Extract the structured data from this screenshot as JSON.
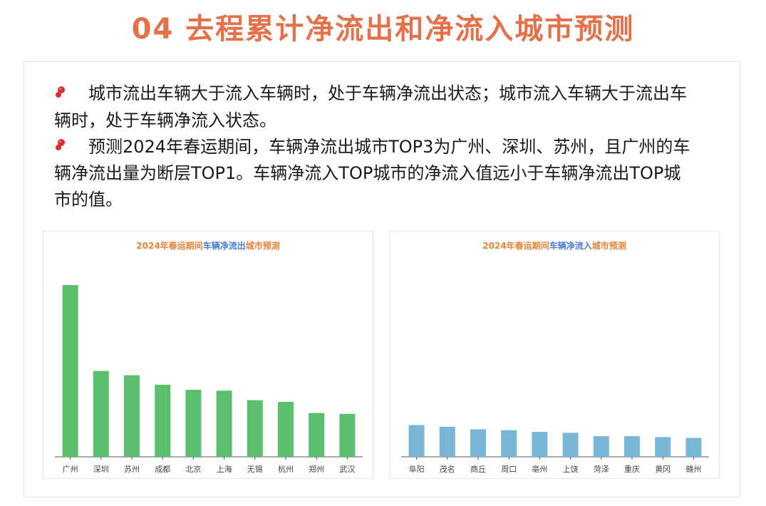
{
  "heading": "04 去程累计净流出和净流入城市预测",
  "bullets": [
    "城市流出车辆大于流入车辆时，处于车辆净流出状态；城市流入车辆大于流出车辆时，处于车辆净流入状态。",
    "预测2024年春运期间，车辆净流出城市TOP3为广州、深圳、苏州，且广州的车辆净流出量为断层TOP1。车辆净流入TOP城市的净流入值远小于车辆净流出TOP城市的值。"
  ],
  "colors": {
    "heading": "#e4714a",
    "outflow_bar": "#5cbf6e",
    "inflow_bar": "#79b6d6",
    "title_orange": "#e8833a",
    "title_blue": "#4a7ed4",
    "bullet_icon": "#d9302c"
  },
  "chart_data": [
    {
      "type": "bar",
      "title_parts": [
        "2024年春运期间",
        "车辆净流出",
        "城市预测"
      ],
      "categories": [
        "广州",
        "深圳",
        "苏州",
        "成都",
        "北京",
        "上海",
        "无锡",
        "杭州",
        "郑州",
        "武汉"
      ],
      "values": [
        100,
        50,
        47.5,
        42,
        39,
        38.5,
        33,
        32,
        25.5,
        25
      ],
      "ylim": [
        0,
        100
      ],
      "grid": false,
      "legend": "none"
    },
    {
      "type": "bar",
      "title_parts": [
        "2024年春运期间",
        "车辆净流入",
        "城市预测"
      ],
      "categories": [
        "阜阳",
        "茂名",
        "商丘",
        "周口",
        "亳州",
        "上饶",
        "菏泽",
        "重庆",
        "黄冈",
        "赣州"
      ],
      "values": [
        18.5,
        17.5,
        16,
        15.5,
        14.5,
        14,
        12,
        12,
        11.5,
        11
      ],
      "ylim": [
        0,
        100
      ],
      "grid": false,
      "legend": "none"
    }
  ]
}
